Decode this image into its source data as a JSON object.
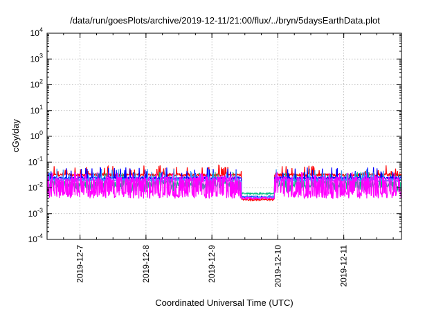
{
  "chart_data": {
    "type": "line",
    "title": "/data/run/goesPlots/archive/2019-12-11/21:00/flux/../bryn/5daysEarthData.plot",
    "xlabel": "Coordinated Universal Time (UTC)",
    "ylabel": "cGy/day",
    "yscale": "log",
    "ylim": [
      0.0001,
      10000
    ],
    "xlim": [
      "2019-12-06 12:00",
      "2019-12-11 21:00"
    ],
    "grid": true,
    "legend": "none",
    "yticks": [
      {
        "base": "10",
        "exp": "4"
      },
      {
        "base": "10",
        "exp": "3"
      },
      {
        "base": "10",
        "exp": "2"
      },
      {
        "base": "10",
        "exp": "1"
      },
      {
        "base": "10",
        "exp": "0"
      },
      {
        "base": "10",
        "exp": "-1"
      },
      {
        "base": "10",
        "exp": "-2"
      },
      {
        "base": "10",
        "exp": "-3"
      },
      {
        "base": "10",
        "exp": "-4"
      }
    ],
    "ytick_values": [
      10000,
      1000,
      100,
      10,
      1,
      0.1,
      0.01,
      0.001,
      0.0001
    ],
    "xticks": [
      "2019-12-7",
      "2019-12-8",
      "2019-12-9",
      "2019-12-10",
      "2019-12-11"
    ],
    "xtick_days": [
      1,
      2,
      3,
      4,
      5
    ],
    "series": [
      {
        "color": "#ff0000",
        "base": 0.032,
        "spread": 0.1,
        "spike": 0.055,
        "gap_base": 0.0035
      },
      {
        "color": "#00c080",
        "base": 0.014,
        "spread": 0.25,
        "spike": 0.03,
        "gap_base": 0.006
      },
      {
        "color": "#0000ff",
        "base": 0.024,
        "spread": 0.1,
        "spike": 0.045,
        "gap_base": 0.0045
      },
      {
        "color": "#3399ff",
        "base": 0.02,
        "spread": 0.12,
        "spike": 0.04,
        "gap_base": 0.0045
      },
      {
        "color": "#ff00ff",
        "base": 0.0055,
        "spread": 0.3,
        "spike": 0.03,
        "gap_base": 0.004
      }
    ],
    "data_gaps": [
      {
        "start_day": 3.45,
        "end_day": 3.95,
        "note": ""
      }
    ]
  }
}
